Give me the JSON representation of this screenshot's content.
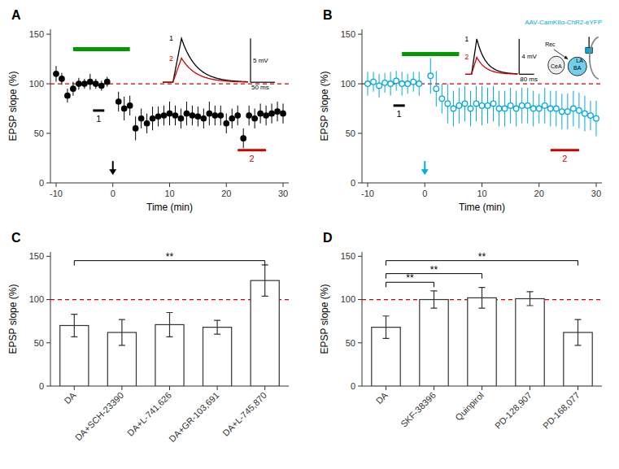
{
  "chart_data": [
    {
      "type": "scatter",
      "panel_label": "A",
      "xlabel": "Time (min)",
      "ylabel": "EPSP slope (%)",
      "xlim": [
        -11,
        31
      ],
      "ylim": [
        0,
        155
      ],
      "xticks": [
        -10,
        0,
        10,
        20,
        30
      ],
      "yticks": [
        0,
        50,
        100,
        150
      ],
      "series": [
        {
          "color": "#000000",
          "marker": "circle",
          "x": [
            -10,
            -9,
            -8,
            -7,
            -6,
            -5,
            -4,
            -3,
            -2,
            -1
          ],
          "values": [
            110,
            105,
            88,
            95,
            100,
            100,
            102,
            100,
            98,
            102
          ],
          "errors": [
            8,
            6,
            7,
            7,
            6,
            5,
            8,
            5,
            5,
            5
          ]
        },
        {
          "color": "#000000",
          "marker": "circle",
          "x": [
            1,
            2,
            3,
            4,
            5,
            6,
            7,
            8,
            9,
            10,
            11,
            12,
            13,
            14,
            15,
            16,
            17,
            18,
            19,
            20,
            21,
            22,
            23,
            24,
            25,
            26,
            27,
            28,
            29,
            30
          ],
          "values": [
            82,
            75,
            78,
            55,
            65,
            60,
            65,
            67,
            68,
            70,
            68,
            65,
            70,
            68,
            67,
            65,
            70,
            68,
            68,
            60,
            65,
            68,
            45,
            68,
            65,
            70,
            68,
            70,
            72,
            70
          ],
          "errors": [
            10,
            12,
            10,
            12,
            10,
            10,
            12,
            10,
            10,
            12,
            10,
            10,
            12,
            10,
            10,
            10,
            12,
            10,
            10,
            10,
            10,
            10,
            10,
            10,
            10,
            10,
            10,
            10,
            10,
            10
          ]
        }
      ],
      "reference_lines": [
        {
          "y": 100,
          "color": "#cc0000",
          "line_style": "dashed"
        }
      ],
      "period_bars": [
        {
          "x": [
            -7,
            3
          ],
          "y": 135,
          "color": "#009900"
        },
        {
          "x": [
            -3.5,
            -1.5
          ],
          "y": 73,
          "color": "#000000",
          "label": "1",
          "label_y": 68
        },
        {
          "x": [
            22,
            27
          ],
          "y": 33,
          "color": "#cc0000",
          "label": "2",
          "label_y": 28
        }
      ],
      "arrow": {
        "x": 0,
        "y": [
          22,
          8
        ],
        "color": "#000000"
      },
      "inset": {
        "traces": [
          {
            "label": "1",
            "color": "#000000",
            "peak": 5
          },
          {
            "label": "2",
            "color": "#cc0000",
            "peak": 2.75
          }
        ],
        "scale_bar_y": {
          "value": 5,
          "label": "5 mV"
        },
        "scale_bar_x": {
          "label": "50 ms"
        }
      }
    },
    {
      "type": "scatter",
      "panel_label": "B",
      "xlabel": "Time (min)",
      "ylabel": "EPSP slope (%)",
      "xlim": [
        -11,
        31
      ],
      "ylim": [
        0,
        155
      ],
      "xticks": [
        -10,
        0,
        10,
        20,
        30
      ],
      "yticks": [
        0,
        50,
        100,
        150
      ],
      "series": [
        {
          "color": "#00aadd",
          "marker": "open-circle",
          "x": [
            -10,
            -9,
            -8,
            -7,
            -6,
            -5,
            -4,
            -3,
            -2,
            -1
          ],
          "values": [
            100,
            102,
            98,
            101,
            100,
            103,
            100,
            100,
            102,
            100
          ],
          "errors": [
            12,
            10,
            12,
            10,
            12,
            10,
            12,
            10,
            10,
            12
          ]
        },
        {
          "color": "#00aadd",
          "marker": "open-circle",
          "x": [
            1,
            2,
            3,
            4,
            5,
            6,
            7,
            8,
            9,
            10,
            11,
            12,
            13,
            14,
            15,
            16,
            17,
            18,
            19,
            20,
            21,
            22,
            23,
            24,
            25,
            26,
            27,
            28,
            29,
            30
          ],
          "values": [
            108,
            95,
            85,
            80,
            75,
            78,
            80,
            75,
            80,
            78,
            78,
            80,
            75,
            75,
            78,
            75,
            78,
            78,
            75,
            75,
            78,
            75,
            75,
            72,
            72,
            75,
            73,
            70,
            68,
            65
          ],
          "errors": [
            18,
            18,
            15,
            20,
            18,
            18,
            18,
            18,
            18,
            20,
            18,
            18,
            18,
            18,
            18,
            18,
            18,
            18,
            18,
            15,
            18,
            18,
            18,
            18,
            18,
            18,
            18,
            18,
            15,
            18
          ]
        }
      ],
      "reference_lines": [
        {
          "y": 100,
          "color": "#cc0000",
          "line_style": "dashed"
        }
      ],
      "period_bars": [
        {
          "x": [
            -4,
            6
          ],
          "y": 130,
          "color": "#009900"
        },
        {
          "x": [
            -5.5,
            -3.5
          ],
          "y": 78,
          "color": "#000000",
          "label": "1",
          "label_y": 73
        },
        {
          "x": [
            22,
            27
          ],
          "y": 33,
          "color": "#cc0000",
          "label": "2",
          "label_y": 28
        }
      ],
      "arrow": {
        "x": 0,
        "y": [
          22,
          8
        ],
        "color": "#00aadd"
      },
      "inset": {
        "traces": [
          {
            "label": "1",
            "color": "#000000",
            "peak": 4
          },
          {
            "label": "2",
            "color": "#cc0000",
            "peak": 1.92
          }
        ],
        "scale_bar_y": {
          "value": 4,
          "label": "4 mV"
        },
        "scale_bar_x": {
          "label": "80 ms"
        }
      },
      "diagram": {
        "title": "AAV-CamKIIα-ChR2-eYFP",
        "color": "#00aadd",
        "labels": [
          "CeA",
          "BA",
          "LA",
          "Rec"
        ]
      }
    },
    {
      "type": "bar",
      "panel_label": "C",
      "ylabel": "EPSP slope (%)",
      "categories": [
        "DA",
        "DA+SCH-23390",
        "DA+L-741,626",
        "DA+GR-103,691",
        "DA+L-745,870"
      ],
      "values": [
        70,
        62,
        71,
        68,
        122
      ],
      "errors": [
        13,
        15,
        14,
        8,
        18
      ],
      "color": "#ffffff",
      "ylim": [
        0,
        155
      ],
      "yticks": [
        0,
        50,
        100,
        150
      ],
      "reference_lines": [
        {
          "y": 100,
          "color": "#cc0000",
          "line_style": "dashed"
        }
      ],
      "brackets": [
        {
          "from": 0,
          "to": 4,
          "y": 145,
          "label": "**"
        }
      ]
    },
    {
      "type": "bar",
      "panel_label": "D",
      "ylabel": "EPSP slope (%)",
      "categories": [
        "DA",
        "SKF-38396",
        "Quinpirol",
        "PD-128,907",
        "PD-168,077"
      ],
      "values": [
        68,
        100,
        102,
        101,
        62
      ],
      "errors": [
        13,
        10,
        12,
        8,
        15
      ],
      "color": "#ffffff",
      "ylim": [
        0,
        155
      ],
      "yticks": [
        0,
        50,
        100,
        150
      ],
      "reference_lines": [
        {
          "y": 100,
          "color": "#cc0000",
          "line_style": "dashed"
        }
      ],
      "brackets": [
        {
          "from": 0,
          "to": 1,
          "y": 120,
          "label": "**"
        },
        {
          "from": 0,
          "to": 2,
          "y": 130,
          "label": "**"
        },
        {
          "from": 0,
          "to": 4,
          "y": 145,
          "label": "**"
        }
      ]
    }
  ]
}
